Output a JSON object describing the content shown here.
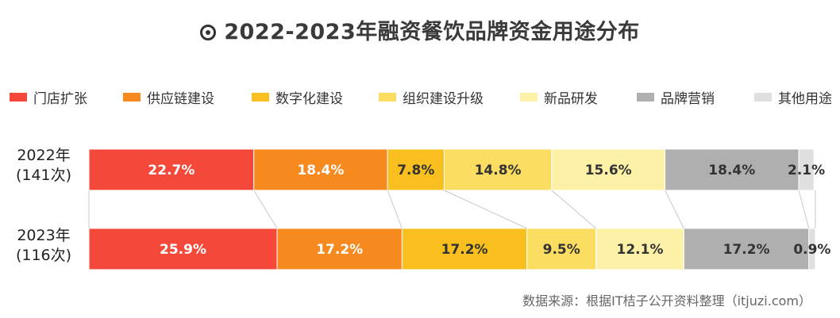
{
  "title": "2022-2023年融资餐饮品牌资金用途分布",
  "source": "数据来源：根据IT桔子公开资料整理（itjuzi.com）",
  "chart_data": {
    "type": "bar",
    "orientation": "horizontal-stacked-100",
    "title": "2022-2023年融资餐饮品牌资金用途分布",
    "categories": [
      {
        "year": "2022年",
        "count": "(141次)"
      },
      {
        "year": "2023年",
        "count": "(116次)"
      }
    ],
    "series": [
      {
        "name": "门店扩张",
        "color": "#F4483B",
        "label_color": "#ffffff",
        "values": [
          22.7,
          25.9
        ]
      },
      {
        "name": "供应链建设",
        "color": "#F68A1E",
        "label_color": "#ffffff",
        "values": [
          18.4,
          17.2
        ]
      },
      {
        "name": "数字化建设",
        "color": "#F8BF1E",
        "label_color": "#333333",
        "values": [
          7.8,
          17.2
        ]
      },
      {
        "name": "组织建设升级",
        "color": "#FBDD62",
        "label_color": "#333333",
        "values": [
          14.8,
          9.5
        ]
      },
      {
        "name": "新品研发",
        "color": "#FCF1A6",
        "label_color": "#333333",
        "values": [
          15.6,
          12.1
        ]
      },
      {
        "name": "品牌营销",
        "color": "#AFAFAF",
        "label_color": "#333333",
        "values": [
          18.4,
          17.2
        ]
      },
      {
        "name": "其他用途",
        "color": "#DFDFDF",
        "label_color": "#333333",
        "values": [
          2.1,
          0.9
        ]
      }
    ],
    "xlim": [
      0,
      100
    ],
    "value_suffix": "%",
    "legend_position": "top"
  }
}
